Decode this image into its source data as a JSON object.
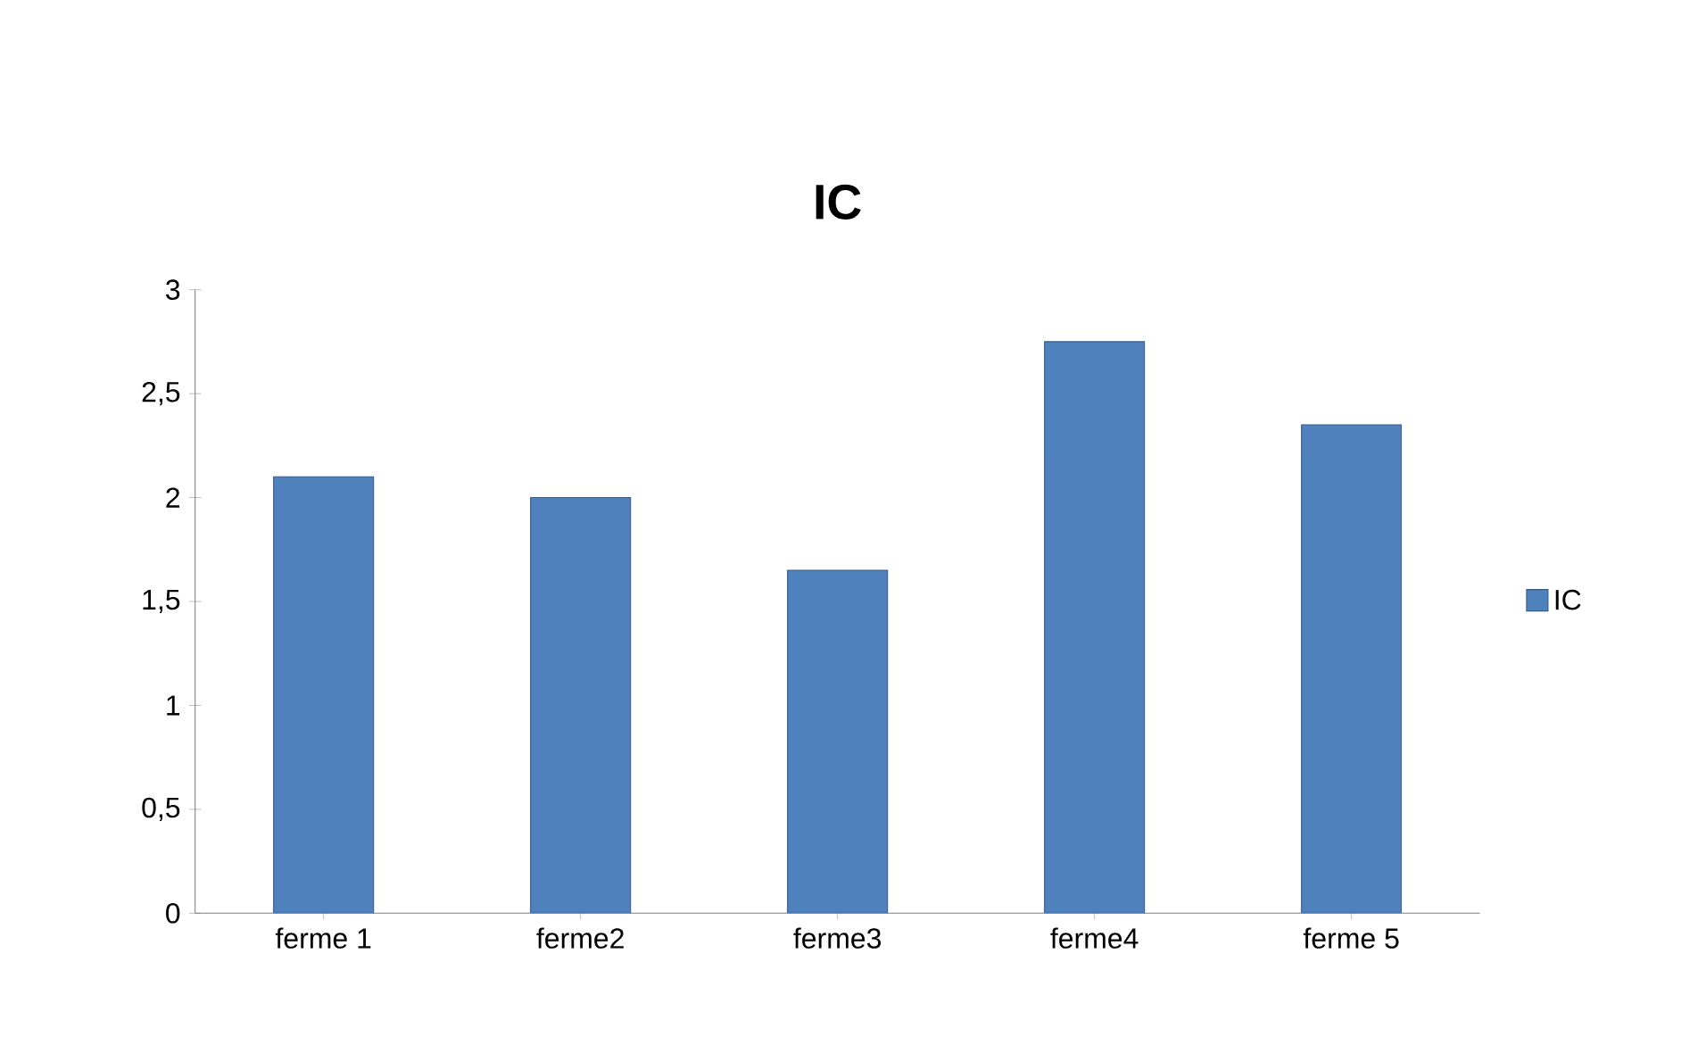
{
  "chart_data": {
    "type": "bar",
    "title": "IC",
    "categories": [
      "ferme 1",
      "ferme2",
      "ferme3",
      "ferme4",
      "ferme 5"
    ],
    "series": [
      {
        "name": "IC",
        "color": "#4f81bd",
        "values": [
          2.1,
          2.0,
          1.65,
          2.75,
          2.35
        ]
      }
    ],
    "ylim": [
      0,
      3
    ],
    "yticks": [
      0,
      {
        "value": 0.5,
        "label": "0,5"
      },
      1,
      {
        "value": 1.5,
        "label": "1,5"
      },
      2,
      {
        "value": 2.5,
        "label": "2,5"
      },
      3
    ],
    "legend": "right"
  }
}
